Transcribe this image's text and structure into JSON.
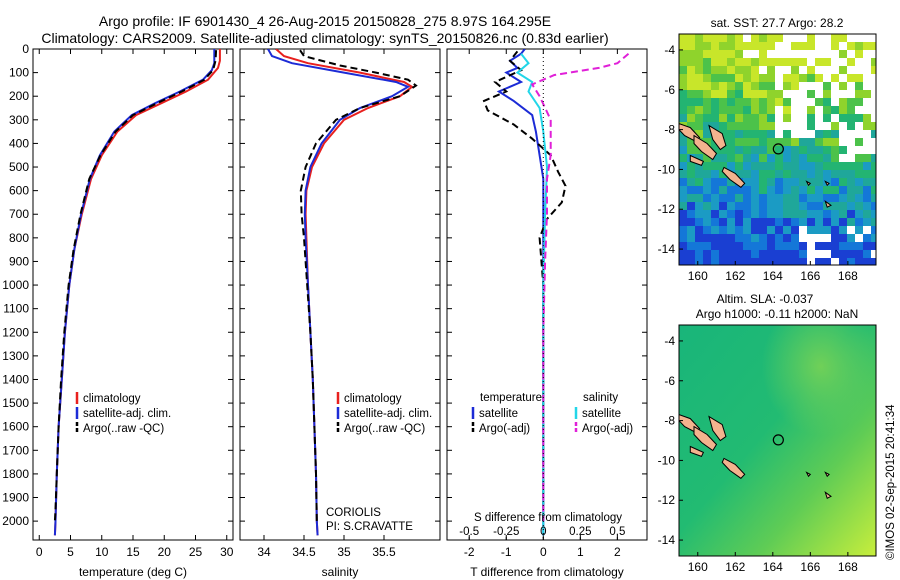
{
  "titles": {
    "line1": "Argo profile: IF 6901430_4 26-Aug-2015 20150828_275 8.97S 164.295E",
    "line2": "Climatology: CARS2009. Satellite-adjusted climatology: synTS_20150826.nc (0.83d earlier)"
  },
  "colors": {
    "climatology": "#e8201e",
    "satellite": "#1c2bd6",
    "argo": "#000000",
    "sal_satellite": "#22d6e8",
    "sal_argo": "#e020d8",
    "land": "#f3b38e"
  },
  "chart_data": [
    {
      "type": "line",
      "name": "temperature-profile",
      "xlabel": "temperature (deg C)",
      "ylabel": "",
      "xlim": [
        -1,
        31
      ],
      "ylim": [
        0,
        2080
      ],
      "xticks": [
        0,
        5,
        10,
        15,
        20,
        25,
        30
      ],
      "yticks": [
        0,
        100,
        200,
        300,
        400,
        500,
        600,
        700,
        800,
        900,
        1000,
        1100,
        1200,
        1300,
        1400,
        1500,
        1600,
        1700,
        1800,
        1900,
        2000
      ],
      "legend": [
        "climatology",
        "satellite-adj. clim.",
        "Argo(..raw -QC)"
      ],
      "series": [
        {
          "name": "climatology",
          "style": "solid",
          "color": "#e8201e",
          "points": [
            [
              28.9,
              0
            ],
            [
              28.9,
              50
            ],
            [
              28.6,
              80
            ],
            [
              27.0,
              130
            ],
            [
              23.5,
              180
            ],
            [
              19.5,
              230
            ],
            [
              15.5,
              280
            ],
            [
              12.5,
              350
            ],
            [
              10.0,
              450
            ],
            [
              8.3,
              550
            ],
            [
              6.8,
              700
            ],
            [
              5.6,
              850
            ],
            [
              4.8,
              1000
            ],
            [
              4.1,
              1200
            ],
            [
              3.6,
              1400
            ],
            [
              3.1,
              1600
            ],
            [
              2.8,
              1800
            ],
            [
              2.6,
              2000
            ],
            [
              2.5,
              2060
            ]
          ]
        },
        {
          "name": "satellite-adj. clim.",
          "style": "solid",
          "color": "#1c2bd6",
          "points": [
            [
              28.0,
              0
            ],
            [
              28.0,
              60
            ],
            [
              27.6,
              90
            ],
            [
              26.2,
              130
            ],
            [
              22.5,
              180
            ],
            [
              18.5,
              230
            ],
            [
              14.8,
              280
            ],
            [
              12.0,
              350
            ],
            [
              9.7,
              450
            ],
            [
              8.1,
              550
            ],
            [
              6.7,
              700
            ],
            [
              5.6,
              850
            ],
            [
              4.8,
              1000
            ],
            [
              4.1,
              1200
            ],
            [
              3.6,
              1400
            ],
            [
              3.1,
              1600
            ],
            [
              2.8,
              1800
            ],
            [
              2.6,
              2000
            ],
            [
              2.5,
              2060
            ]
          ]
        },
        {
          "name": "Argo(..raw -QC)",
          "style": "dashed",
          "color": "#000000",
          "points": [
            [
              28.3,
              5
            ],
            [
              28.2,
              50
            ],
            [
              27.8,
              90
            ],
            [
              26.4,
              130
            ],
            [
              22.8,
              180
            ],
            [
              18.8,
              230
            ],
            [
              15.0,
              280
            ],
            [
              12.2,
              350
            ],
            [
              9.8,
              450
            ],
            [
              8.0,
              550
            ],
            [
              6.6,
              700
            ],
            [
              5.5,
              850
            ],
            [
              4.7,
              1000
            ],
            [
              4.0,
              1200
            ],
            [
              3.5,
              1400
            ],
            [
              3.1,
              1600
            ],
            [
              2.8,
              1800
            ],
            [
              2.6,
              1950
            ],
            [
              2.5,
              2000
            ]
          ]
        }
      ]
    },
    {
      "type": "line",
      "name": "salinity-profile",
      "xlabel": "salinity",
      "xlim": [
        33.7,
        36.2
      ],
      "ylim": [
        0,
        2080
      ],
      "xticks": [
        34,
        34.5,
        35,
        35.5
      ],
      "legend": [
        "climatology",
        "satellite-adj. clim.",
        "Argo(..raw -QC)"
      ],
      "annotation": [
        "CORIOLIS",
        "PI: S.CRAVATTE"
      ],
      "series": [
        {
          "name": "climatology",
          "style": "solid",
          "color": "#e8201e",
          "points": [
            [
              34.15,
              0
            ],
            [
              34.25,
              30
            ],
            [
              34.55,
              60
            ],
            [
              35.2,
              100
            ],
            [
              35.75,
              140
            ],
            [
              35.85,
              160
            ],
            [
              35.7,
              200
            ],
            [
              35.3,
              250
            ],
            [
              35.0,
              300
            ],
            [
              34.75,
              400
            ],
            [
              34.6,
              500
            ],
            [
              34.53,
              600
            ],
            [
              34.52,
              700
            ],
            [
              34.53,
              800
            ],
            [
              34.55,
              1000
            ],
            [
              34.58,
              1200
            ],
            [
              34.61,
              1400
            ],
            [
              34.63,
              1600
            ],
            [
              34.65,
              1800
            ],
            [
              34.66,
              2000
            ],
            [
              34.67,
              2060
            ]
          ]
        },
        {
          "name": "satellite-adj. clim.",
          "style": "solid",
          "color": "#1c2bd6",
          "points": [
            [
              34.05,
              0
            ],
            [
              34.1,
              30
            ],
            [
              34.35,
              60
            ],
            [
              35.0,
              100
            ],
            [
              35.65,
              140
            ],
            [
              35.8,
              160
            ],
            [
              35.6,
              200
            ],
            [
              35.2,
              250
            ],
            [
              34.95,
              300
            ],
            [
              34.72,
              400
            ],
            [
              34.58,
              500
            ],
            [
              34.52,
              600
            ],
            [
              34.51,
              700
            ],
            [
              34.52,
              800
            ],
            [
              34.55,
              1000
            ],
            [
              34.58,
              1200
            ],
            [
              34.61,
              1400
            ],
            [
              34.63,
              1600
            ],
            [
              34.65,
              1800
            ],
            [
              34.66,
              2000
            ],
            [
              34.67,
              2060
            ]
          ]
        },
        {
          "name": "Argo(..raw -QC)",
          "style": "dashed",
          "color": "#000000",
          "points": [
            [
              34.45,
              5
            ],
            [
              34.5,
              30
            ],
            [
              34.95,
              70
            ],
            [
              35.4,
              100
            ],
            [
              35.8,
              130
            ],
            [
              35.9,
              155
            ],
            [
              35.7,
              200
            ],
            [
              35.2,
              250
            ],
            [
              34.9,
              300
            ],
            [
              34.65,
              400
            ],
            [
              34.52,
              500
            ],
            [
              34.46,
              600
            ],
            [
              34.47,
              700
            ],
            [
              34.5,
              800
            ],
            [
              34.54,
              1000
            ],
            [
              34.58,
              1200
            ],
            [
              34.61,
              1400
            ],
            [
              34.63,
              1600
            ],
            [
              34.65,
              1800
            ],
            [
              34.66,
              2000
            ]
          ]
        }
      ]
    },
    {
      "type": "line",
      "name": "difference-profile",
      "xlabel": "T difference from climatology",
      "xlabel_top": "S difference from climatology",
      "xlim": [
        -2.6,
        2.8
      ],
      "ylim": [
        0,
        2080
      ],
      "xticks_bottom": [
        -2,
        -1,
        0,
        1,
        2
      ],
      "xticks_top": [
        "-0.5",
        "-0.25",
        "0",
        "0.25",
        "0.5"
      ],
      "legend": {
        "temperature": [
          "satellite",
          "Argo(-adj)"
        ],
        "salinity": [
          "satellite",
          "Argo(-adj)"
        ]
      },
      "series": [
        {
          "name": "temperature satellite",
          "style": "solid",
          "color": "#1c2bd6",
          "points": [
            [
              -0.5,
              0
            ],
            [
              -0.6,
              20
            ],
            [
              -0.9,
              50
            ],
            [
              -0.7,
              80
            ],
            [
              -1.0,
              100
            ],
            [
              -0.6,
              140
            ],
            [
              -1.2,
              180
            ],
            [
              -0.8,
              220
            ],
            [
              -0.3,
              280
            ],
            [
              -0.2,
              350
            ],
            [
              -0.1,
              450
            ],
            [
              0.0,
              550
            ],
            [
              0.0,
              700
            ],
            [
              0.0,
              1000
            ],
            [
              0.0,
              1500
            ],
            [
              0.0,
              2060
            ]
          ]
        },
        {
          "name": "temperature Argo(-adj)",
          "style": "dashed",
          "color": "#000000",
          "points": [
            [
              -0.7,
              10
            ],
            [
              -0.9,
              50
            ],
            [
              -0.6,
              90
            ],
            [
              -1.3,
              140
            ],
            [
              -1.0,
              180
            ],
            [
              -1.6,
              220
            ],
            [
              -1.5,
              260
            ],
            [
              -0.8,
              320
            ],
            [
              -0.3,
              380
            ],
            [
              0.2,
              450
            ],
            [
              0.4,
              520
            ],
            [
              0.6,
              580
            ],
            [
              0.5,
              650
            ],
            [
              0.1,
              720
            ],
            [
              -0.1,
              800
            ],
            [
              0.0,
              1000
            ],
            [
              0.0,
              1400
            ],
            [
              0.0,
              2000
            ]
          ]
        },
        {
          "name": "salinity satellite",
          "style": "solid",
          "color": "#22d6e8",
          "points": [
            [
              -0.6,
              20
            ],
            [
              -0.4,
              60
            ],
            [
              -0.7,
              100
            ],
            [
              -0.3,
              140
            ],
            [
              -0.4,
              180
            ],
            [
              -0.1,
              250
            ],
            [
              0.0,
              350
            ],
            [
              0.1,
              500
            ],
            [
              0.05,
              700
            ],
            [
              0.0,
              1000
            ],
            [
              0.0,
              1500
            ],
            [
              0.0,
              2060
            ]
          ]
        },
        {
          "name": "salinity Argo(-adj)",
          "style": "dashed",
          "color": "#e020d8",
          "points": [
            [
              2.3,
              20
            ],
            [
              2.0,
              60
            ],
            [
              1.5,
              80
            ],
            [
              0.3,
              110
            ],
            [
              -0.3,
              150
            ],
            [
              -0.1,
              200
            ],
            [
              0.2,
              300
            ],
            [
              0.2,
              450
            ],
            [
              0.1,
              550
            ],
            [
              0.1,
              700
            ],
            [
              0.05,
              900
            ],
            [
              0.0,
              1200
            ],
            [
              0.0,
              2000
            ]
          ]
        }
      ]
    },
    {
      "type": "heatmap",
      "name": "sst-map",
      "title": "sat. SST: 27.7 Argo: 28.2",
      "xlim": [
        159,
        169.5
      ],
      "ylim": [
        -14.8,
        -3.2
      ],
      "xticks": [
        160,
        162,
        164,
        166,
        168
      ],
      "yticks": [
        -4,
        -6,
        -8,
        -10,
        -12,
        -14
      ],
      "argo_position": [
        164.295,
        -8.97
      ]
    },
    {
      "type": "heatmap",
      "name": "sla-map",
      "title": [
        "Altim. SLA: -0.037",
        "Argo h1000: -0.11 h2000: NaN"
      ],
      "xlim": [
        159,
        169.5
      ],
      "ylim": [
        -14.8,
        -3.2
      ],
      "xticks": [
        160,
        162,
        164,
        166,
        168
      ],
      "yticks": [
        -4,
        -6,
        -8,
        -10,
        -12,
        -14
      ],
      "argo_position": [
        164.295,
        -8.97
      ]
    }
  ],
  "credit": "©IMOS 02-Sep-2015 20:41:34"
}
